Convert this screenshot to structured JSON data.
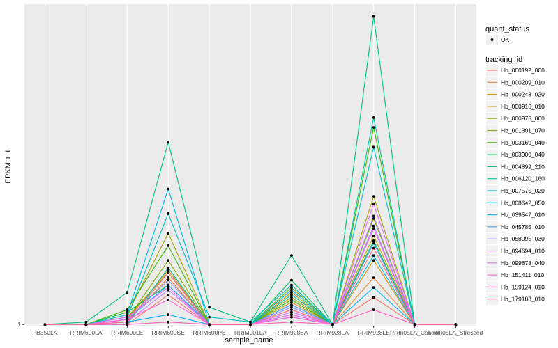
{
  "chart_data": {
    "type": "line",
    "title": "",
    "xlabel": "sample_name",
    "ylabel": "FPKM + 1",
    "y_tick_labels": [
      "1"
    ],
    "y_tick_values": [
      1
    ],
    "ylim": [
      0.95,
      14.0
    ],
    "grid": true,
    "legend_position": "right",
    "categories": [
      "PB350LA",
      "RRIM600LA",
      "RRIM600LE",
      "RRIM600SE",
      "RRIM600PE",
      "RRIM901LA",
      "RRIM928BA",
      "RRIM928LA",
      "RRIM928LE",
      "RRIII05LA_Control",
      "RRIII05LA_Stressed"
    ],
    "point_legend": {
      "title": "quant_status",
      "items": [
        "OK"
      ]
    },
    "series_legend_title": "tracking_id",
    "series": [
      {
        "name": "Hb_000192_060",
        "color": "#F8766D",
        "values": [
          1.0,
          1.0,
          1.0,
          2.2,
          1.0,
          1.0,
          1.4,
          1.0,
          2.1,
          1.0,
          1.0
        ]
      },
      {
        "name": "Hb_000209_010",
        "color": "#EA8331",
        "values": [
          1.0,
          1.0,
          1.1,
          2.9,
          1.0,
          1.0,
          1.6,
          1.0,
          2.9,
          1.0,
          1.0
        ]
      },
      {
        "name": "Hb_000248_020",
        "color": "#D89000",
        "values": [
          1.0,
          1.0,
          1.2,
          3.2,
          1.0,
          1.0,
          1.9,
          1.0,
          3.6,
          1.0,
          1.0
        ]
      },
      {
        "name": "Hb_000916_010",
        "color": "#C09B00",
        "values": [
          1.0,
          1.0,
          1.3,
          3.1,
          1.0,
          1.0,
          2.3,
          1.0,
          4.6,
          1.0,
          1.0
        ]
      },
      {
        "name": "Hb_000975_060",
        "color": "#A3A500",
        "values": [
          1.0,
          1.0,
          1.4,
          4.7,
          1.0,
          1.0,
          2.1,
          1.0,
          6.2,
          1.0,
          1.0
        ]
      },
      {
        "name": "Hb_001301_070",
        "color": "#7CAE00",
        "values": [
          1.0,
          1.0,
          1.2,
          3.6,
          1.0,
          1.0,
          2.5,
          1.0,
          5.3,
          1.0,
          1.0
        ]
      },
      {
        "name": "Hb_003169_040",
        "color": "#39B600",
        "values": [
          1.0,
          1.0,
          1.6,
          4.2,
          1.0,
          1.0,
          2.0,
          1.0,
          9.0,
          1.0,
          1.0
        ]
      },
      {
        "name": "Hb_003900_040",
        "color": "#00BB4E",
        "values": [
          1.0,
          1.0,
          1.5,
          2.6,
          1.0,
          1.0,
          2.8,
          1.0,
          4.4,
          1.0,
          1.0
        ]
      },
      {
        "name": "Hb_004899_210",
        "color": "#00BF7D",
        "values": [
          1.0,
          1.1,
          2.3,
          8.4,
          1.7,
          1.1,
          3.8,
          1.0,
          13.5,
          1.0,
          1.0
        ]
      },
      {
        "name": "Hb_006120_160",
        "color": "#00C1A3",
        "values": [
          1.0,
          1.0,
          1.0,
          3.3,
          1.0,
          1.0,
          2.2,
          1.0,
          9.4,
          1.0,
          1.0
        ]
      },
      {
        "name": "Hb_007575_020",
        "color": "#00BFC4",
        "values": [
          1.0,
          1.0,
          1.3,
          5.5,
          1.3,
          1.1,
          2.6,
          1.0,
          8.2,
          1.0,
          1.0
        ]
      },
      {
        "name": "Hb_008642_050",
        "color": "#00BAE0",
        "values": [
          1.0,
          1.0,
          1.4,
          6.5,
          1.0,
          1.0,
          2.4,
          1.0,
          3.8,
          1.0,
          1.0
        ]
      },
      {
        "name": "Hb_039547_010",
        "color": "#00B0F6",
        "values": [
          1.0,
          1.0,
          1.1,
          1.4,
          1.0,
          1.0,
          1.3,
          1.0,
          2.5,
          1.0,
          1.0
        ]
      },
      {
        "name": "Hb_045785_010",
        "color": "#35A2FF",
        "values": [
          1.0,
          1.0,
          1.2,
          2.6,
          1.0,
          1.0,
          1.8,
          1.0,
          4.3,
          1.0,
          1.0
        ]
      },
      {
        "name": "Hb_058095_030",
        "color": "#9590FF",
        "values": [
          1.0,
          1.0,
          1.2,
          2.8,
          1.0,
          1.0,
          1.7,
          1.0,
          5.0,
          1.0,
          1.0
        ]
      },
      {
        "name": "Hb_094694_010",
        "color": "#C77CFF",
        "values": [
          1.0,
          1.0,
          1.1,
          2.4,
          1.0,
          1.0,
          1.5,
          1.0,
          5.4,
          1.0,
          1.0
        ]
      },
      {
        "name": "Hb_099878_040",
        "color": "#E76BF3",
        "values": [
          1.0,
          1.0,
          1.3,
          2.5,
          1.0,
          1.0,
          1.4,
          1.0,
          5.9,
          1.0,
          1.0
        ]
      },
      {
        "name": "Hb_151411_010",
        "color": "#FA62DB",
        "values": [
          1.0,
          1.0,
          1.2,
          2.0,
          1.0,
          1.0,
          1.3,
          1.0,
          4.9,
          1.0,
          1.0
        ]
      },
      {
        "name": "Hb_159124_010",
        "color": "#FF62BC",
        "values": [
          1.0,
          1.0,
          1.0,
          1.1,
          1.0,
          1.0,
          1.1,
          1.0,
          1.6,
          1.0,
          1.0
        ]
      },
      {
        "name": "Hb_179183_010",
        "color": "#FF6C91",
        "values": [
          1.0,
          1.0,
          1.1,
          3.1,
          1.0,
          1.0,
          1.6,
          1.0,
          4.1,
          1.0,
          1.0
        ]
      }
    ]
  }
}
